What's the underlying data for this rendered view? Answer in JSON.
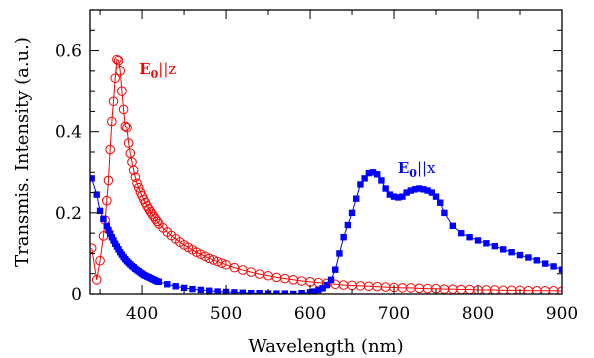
{
  "chart_data": {
    "type": "line",
    "xlabel": "Wavelength (nm)",
    "ylabel": "Transmis. Intensity (a.u.)",
    "xlim": [
      338,
      900
    ],
    "ylim": [
      0,
      0.7
    ],
    "x_ticks": [
      400,
      500,
      600,
      700,
      800,
      900
    ],
    "y_ticks": [
      0,
      0.2,
      0.4,
      0.6
    ],
    "x_tick_labels": [
      "400",
      "500",
      "600",
      "700",
      "800",
      "900"
    ],
    "y_tick_labels": [
      "0",
      "0.2",
      "0.4",
      "0.6"
    ],
    "grid": false,
    "annotations": [
      {
        "main": "E",
        "sub": "0",
        "rest": "||z",
        "color": "#ff0000",
        "x": 368,
        "y": 0.555
      },
      {
        "main": "E",
        "sub": "0",
        "rest": "||x",
        "color": "#0000ff",
        "x": 676,
        "y": 0.31
      }
    ],
    "series": [
      {
        "color": "#ff0000",
        "marker": "open-circle",
        "x": [
          340,
          346,
          350,
          354,
          356,
          358,
          360,
          362,
          364,
          366,
          368,
          370,
          372,
          374,
          376,
          378,
          380,
          382,
          384,
          386,
          388,
          390,
          392,
          394,
          396,
          398,
          400,
          402,
          404,
          406,
          408,
          410,
          412,
          414,
          416,
          418,
          420,
          425,
          430,
          435,
          440,
          445,
          450,
          455,
          460,
          465,
          470,
          475,
          480,
          485,
          490,
          495,
          500,
          510,
          520,
          530,
          540,
          550,
          560,
          570,
          580,
          590,
          600,
          610,
          620,
          630,
          640,
          650,
          660,
          670,
          680,
          690,
          700,
          710,
          720,
          730,
          740,
          750,
          760,
          770,
          780,
          790,
          800,
          810,
          820,
          830,
          840,
          850,
          860,
          870,
          880,
          890,
          900
        ],
        "y": [
          0.113,
          0.035,
          0.082,
          0.143,
          0.182,
          0.23,
          0.28,
          0.356,
          0.425,
          0.475,
          0.532,
          0.578,
          0.575,
          0.55,
          0.5,
          0.455,
          0.413,
          0.41,
          0.372,
          0.347,
          0.325,
          0.305,
          0.288,
          0.273,
          0.262,
          0.251,
          0.242,
          0.233,
          0.225,
          0.217,
          0.21,
          0.203,
          0.197,
          0.191,
          0.185,
          0.179,
          0.173,
          0.163,
          0.153,
          0.144,
          0.136,
          0.128,
          0.121,
          0.115,
          0.109,
          0.103,
          0.098,
          0.093,
          0.088,
          0.084,
          0.08,
          0.076,
          0.072,
          0.065,
          0.059,
          0.054,
          0.049,
          0.045,
          0.041,
          0.038,
          0.035,
          0.032,
          0.03,
          0.028,
          0.026,
          0.024,
          0.022,
          0.021,
          0.02,
          0.019,
          0.018,
          0.017,
          0.016,
          0.015,
          0.015,
          0.014,
          0.013,
          0.013,
          0.012,
          0.012,
          0.011,
          0.011,
          0.01,
          0.01,
          0.01,
          0.009,
          0.009,
          0.009,
          0.008,
          0.008,
          0.008,
          0.008,
          0.007
        ]
      },
      {
        "color": "#0000ff",
        "marker": "filled-square",
        "x": [
          340,
          346,
          350,
          354,
          358,
          360,
          362,
          364,
          366,
          368,
          370,
          372,
          374,
          376,
          378,
          380,
          382,
          384,
          386,
          388,
          390,
          392,
          394,
          396,
          398,
          400,
          402,
          404,
          406,
          408,
          410,
          412,
          414,
          416,
          418,
          420,
          430,
          440,
          450,
          460,
          470,
          480,
          490,
          500,
          510,
          520,
          530,
          540,
          550,
          560,
          570,
          580,
          590,
          600,
          605,
          610,
          615,
          620,
          625,
          630,
          635,
          640,
          645,
          650,
          655,
          660,
          665,
          670,
          675,
          680,
          685,
          690,
          695,
          700,
          705,
          710,
          715,
          720,
          725,
          730,
          735,
          740,
          745,
          750,
          755,
          760,
          770,
          780,
          790,
          800,
          810,
          820,
          830,
          840,
          850,
          860,
          870,
          880,
          890,
          900
        ],
        "y": [
          0.285,
          0.245,
          0.205,
          0.185,
          0.168,
          0.158,
          0.149,
          0.14,
          0.132,
          0.124,
          0.117,
          0.11,
          0.103,
          0.097,
          0.091,
          0.086,
          0.081,
          0.077,
          0.073,
          0.069,
          0.066,
          0.062,
          0.059,
          0.056,
          0.053,
          0.05,
          0.047,
          0.045,
          0.043,
          0.041,
          0.039,
          0.037,
          0.035,
          0.033,
          0.031,
          0.03,
          0.024,
          0.019,
          0.015,
          0.012,
          0.01,
          0.008,
          0.006,
          0.005,
          0.004,
          0.003,
          0.002,
          0.002,
          0.001,
          0.001,
          0.001,
          0.0,
          0.002,
          0.004,
          0.006,
          0.01,
          0.014,
          0.022,
          0.035,
          0.06,
          0.1,
          0.14,
          0.17,
          0.2,
          0.235,
          0.27,
          0.285,
          0.298,
          0.3,
          0.295,
          0.28,
          0.26,
          0.245,
          0.24,
          0.238,
          0.24,
          0.25,
          0.255,
          0.258,
          0.26,
          0.258,
          0.255,
          0.25,
          0.24,
          0.225,
          0.2,
          0.168,
          0.15,
          0.14,
          0.132,
          0.125,
          0.118,
          0.11,
          0.103,
          0.096,
          0.09,
          0.083,
          0.075,
          0.068,
          0.06
        ]
      }
    ]
  }
}
